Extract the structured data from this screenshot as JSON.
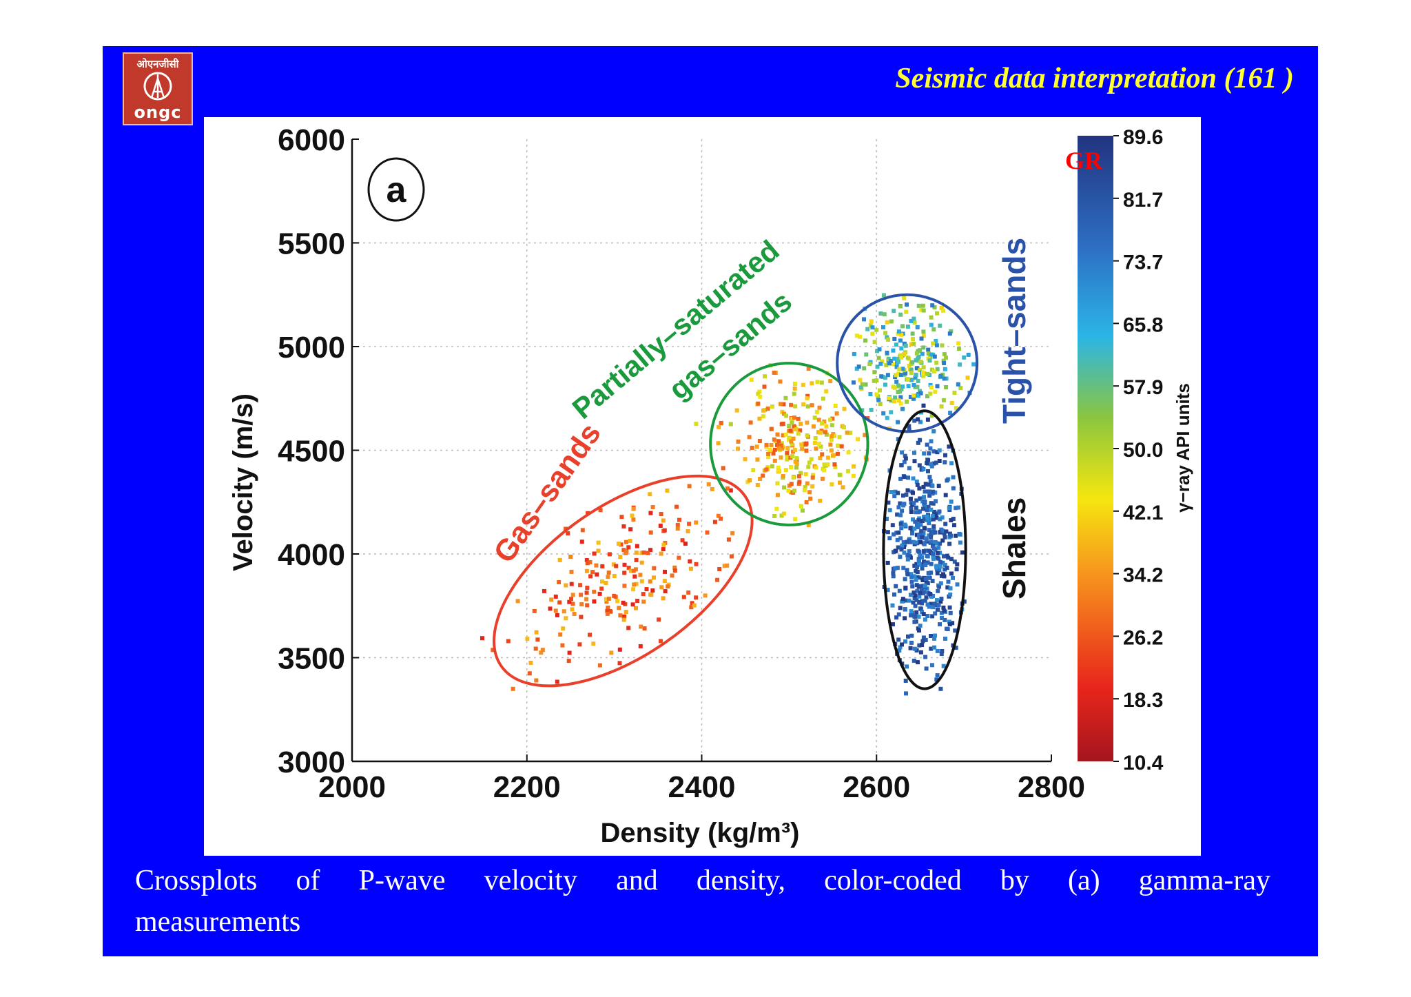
{
  "header": {
    "logo_text": "ओएनजीसी",
    "logo_abbrev": "ONGC",
    "title": "Seismic data interpretation (161 )"
  },
  "caption": {
    "line1": "Crossplots of P-wave velocity and density, color-coded by (a) gamma-ray",
    "line2": "measurements"
  },
  "colors": {
    "slide_bg": "#0000ff",
    "title": "#ffff33",
    "gas_sands": "#e8402a",
    "partially_saturated": "#1a9a3c",
    "tight_sands": "#2a52a8",
    "shales": "#111111",
    "gr_label": "#ff0000"
  },
  "chart_data": {
    "type": "scatter",
    "panel_label": "a",
    "xlabel": "Density (kg/m³)",
    "ylabel": "Velocity (m/s)",
    "xlim": [
      2000,
      2800
    ],
    "ylim": [
      3000,
      6000
    ],
    "xticks": [
      "2000",
      "2200",
      "2400",
      "2600",
      "2800"
    ],
    "yticks": [
      "3000",
      "3500",
      "4000",
      "4500",
      "5000",
      "5500",
      "6000"
    ],
    "grid": true,
    "colorbar": {
      "label": "γ−ray API units",
      "annotation": "GR",
      "ticks": [
        "89.6",
        "81.7",
        "73.7",
        "65.8",
        "57.9",
        "50.0",
        "42.1",
        "34.2",
        "26.2",
        "18.3",
        "10.4"
      ],
      "range": [
        10.4,
        89.6
      ],
      "colormap": "jet"
    },
    "annotations": [
      {
        "text": "Gas–sands",
        "color": "#e8402a"
      },
      {
        "text": "Partially–saturated",
        "color": "#1a9a3c"
      },
      {
        "text": "gas–sands",
        "color": "#1a9a3c"
      },
      {
        "text": "Tight–sands",
        "color": "#2a52a8"
      },
      {
        "text": "Shales",
        "color": "#111111"
      }
    ],
    "clusters": [
      {
        "name": "Gas-sands",
        "center": [
          2310,
          3870
        ],
        "semi_axes": [
          170,
          360
        ],
        "angle": 35,
        "gr_range": [
          18,
          40
        ],
        "n": 220,
        "ellipse_color": "#e8402a"
      },
      {
        "name": "Partially-saturated gas-sands",
        "center": [
          2500,
          4530
        ],
        "semi_axes": [
          90,
          390
        ],
        "angle": 0,
        "gr_range": [
          25,
          52
        ],
        "n": 260,
        "ellipse_color": "#1a9a3c"
      },
      {
        "name": "Tight-sands",
        "center": [
          2635,
          4920
        ],
        "semi_axes": [
          80,
          330
        ],
        "angle": 0,
        "gr_range": [
          40,
          75
        ],
        "n": 260,
        "ellipse_color": "#2a52a8"
      },
      {
        "name": "Shales",
        "center": [
          2655,
          4020
        ],
        "semi_axes": [
          47,
          670
        ],
        "angle": 0,
        "gr_range": [
          70,
          89
        ],
        "n": 520,
        "ellipse_color": "#111111"
      }
    ]
  }
}
